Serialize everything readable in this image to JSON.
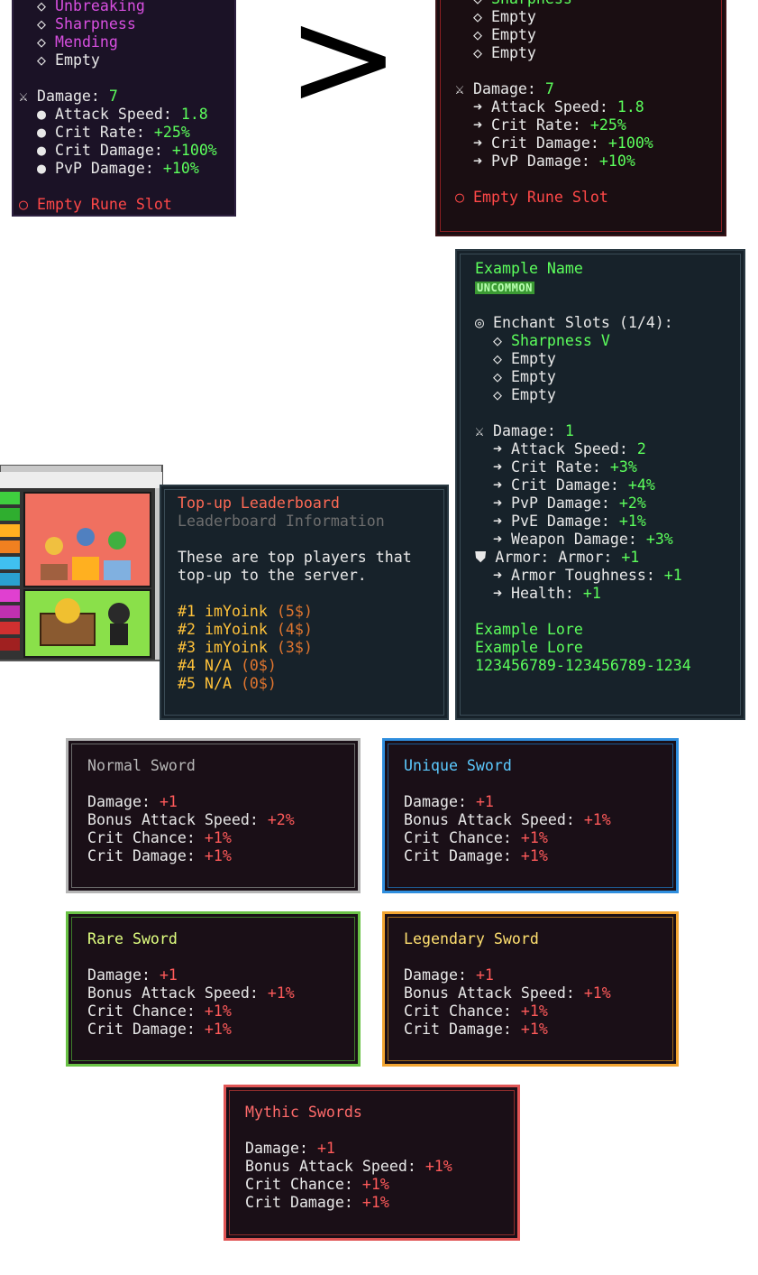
{
  "separator": ">",
  "panels": [
    {
      "lines": [
        [
          {
            "text": "  ◇ ",
            "color": "#e8e8e8"
          },
          {
            "text": "Unbreaking",
            "color": "#d84fe0"
          }
        ],
        [
          {
            "text": "  ◇ ",
            "color": "#e8e8e8"
          },
          {
            "text": "Sharpness",
            "color": "#d84fe0"
          }
        ],
        [
          {
            "text": "  ◇ ",
            "color": "#e8e8e8"
          },
          {
            "text": "Mending",
            "color": "#d84fe0"
          }
        ],
        [
          {
            "text": "  ◇ Empty",
            "color": "#e8e8e8"
          }
        ],
        [],
        [
          {
            "text": "⚔ Damage: ",
            "color": "#e8e8e8"
          },
          {
            "text": "7",
            "color": "#5cff5c"
          }
        ],
        [
          {
            "text": "  ● Attack Speed: ",
            "color": "#e8e8e8"
          },
          {
            "text": "1.8",
            "color": "#5cff5c"
          }
        ],
        [
          {
            "text": "  ● Crit Rate: ",
            "color": "#e8e8e8"
          },
          {
            "text": "+25%",
            "color": "#5cff5c"
          }
        ],
        [
          {
            "text": "  ● Crit Damage: ",
            "color": "#e8e8e8"
          },
          {
            "text": "+100%",
            "color": "#5cff5c"
          }
        ],
        [
          {
            "text": "  ● PvP Damage: ",
            "color": "#e8e8e8"
          },
          {
            "text": "+10%",
            "color": "#5cff5c"
          }
        ],
        [],
        [
          {
            "text": "○ Empty Rune Slot",
            "color": "#ff4848"
          }
        ]
      ]
    },
    {
      "lines": [
        [
          {
            "text": "  ◇ ",
            "color": "#e8e8e8"
          },
          {
            "text": "Sharpness",
            "color": "#5cff5c"
          }
        ],
        [
          {
            "text": "  ◇ Empty",
            "color": "#e8e8e8"
          }
        ],
        [
          {
            "text": "  ◇ Empty",
            "color": "#e8e8e8"
          }
        ],
        [
          {
            "text": "  ◇ Empty",
            "color": "#e8e8e8"
          }
        ],
        [],
        [
          {
            "text": "⚔ Damage: ",
            "color": "#e8e8e8"
          },
          {
            "text": "7",
            "color": "#5cff5c"
          }
        ],
        [
          {
            "text": "  ➜ Attack Speed: ",
            "color": "#e8e8e8"
          },
          {
            "text": "1.8",
            "color": "#5cff5c"
          }
        ],
        [
          {
            "text": "  ➜ Crit Rate: ",
            "color": "#e8e8e8"
          },
          {
            "text": "+25%",
            "color": "#5cff5c"
          }
        ],
        [
          {
            "text": "  ➜ Crit Damage: ",
            "color": "#e8e8e8"
          },
          {
            "text": "+100%",
            "color": "#5cff5c"
          }
        ],
        [
          {
            "text": "  ➜ PvP Damage: ",
            "color": "#e8e8e8"
          },
          {
            "text": "+10%",
            "color": "#5cff5c"
          }
        ],
        [],
        [
          {
            "text": "○ Empty Rune Slot",
            "color": "#ff4848"
          }
        ]
      ]
    },
    {
      "lines": [
        [
          {
            "text": "Example Name",
            "color": "#5cff5c"
          }
        ],
        [
          {
            "text": "UNCOMMON",
            "color": "#b8ffb0",
            "background": "#3b9a33"
          }
        ],
        [],
        [
          {
            "text": "◎ Enchant Slots (1/4):",
            "color": "#e8e8e8"
          }
        ],
        [
          {
            "text": "  ◇ ",
            "color": "#e8e8e8"
          },
          {
            "text": "Sharpness V",
            "color": "#5cff5c"
          }
        ],
        [
          {
            "text": "  ◇ Empty",
            "color": "#e8e8e8"
          }
        ],
        [
          {
            "text": "  ◇ Empty",
            "color": "#e8e8e8"
          }
        ],
        [
          {
            "text": "  ◇ Empty",
            "color": "#e8e8e8"
          }
        ],
        [],
        [
          {
            "text": "⚔ Damage: ",
            "color": "#e8e8e8"
          },
          {
            "text": "1",
            "color": "#5cff5c"
          }
        ],
        [
          {
            "text": "  ➜ Attack Speed: ",
            "color": "#e8e8e8"
          },
          {
            "text": "2",
            "color": "#5cff5c"
          }
        ],
        [
          {
            "text": "  ➜ Crit Rate: ",
            "color": "#e8e8e8"
          },
          {
            "text": "+3%",
            "color": "#5cff5c"
          }
        ],
        [
          {
            "text": "  ➜ Crit Damage: ",
            "color": "#e8e8e8"
          },
          {
            "text": "+4%",
            "color": "#5cff5c"
          }
        ],
        [
          {
            "text": "  ➜ PvP Damage: ",
            "color": "#e8e8e8"
          },
          {
            "text": "+2%",
            "color": "#5cff5c"
          }
        ],
        [
          {
            "text": "  ➜ PvE Damage: ",
            "color": "#e8e8e8"
          },
          {
            "text": "+1%",
            "color": "#5cff5c"
          }
        ],
        [
          {
            "text": "  ➜ Weapon Damage: ",
            "color": "#e8e8e8"
          },
          {
            "text": "+3%",
            "color": "#5cff5c"
          }
        ],
        [
          {
            "text": "⛊ Armor: Armor: ",
            "color": "#e8e8e8"
          },
          {
            "text": "+1",
            "color": "#5cff5c"
          }
        ],
        [
          {
            "text": "  ➜ Armor Toughness: ",
            "color": "#e8e8e8"
          },
          {
            "text": "+1",
            "color": "#5cff5c"
          }
        ],
        [
          {
            "text": "  ➜ Health: ",
            "color": "#e8e8e8"
          },
          {
            "text": "+1",
            "color": "#5cff5c"
          }
        ],
        [],
        [
          {
            "text": "Example Lore",
            "color": "#5cff5c"
          }
        ],
        [
          {
            "text": "Example Lore",
            "color": "#5cff5c"
          }
        ],
        [
          {
            "text": "123456789-123456789-1234",
            "color": "#5cff5c"
          }
        ]
      ]
    },
    {
      "lines": [
        [
          {
            "text": "Top-up Leaderboard",
            "color": "#ff6a55"
          }
        ],
        [
          {
            "text": "Leaderboard Information",
            "color": "#6e6e6e"
          }
        ],
        [],
        [
          {
            "text": "These are top players that",
            "color": "#e8e8e8"
          }
        ],
        [
          {
            "text": "top-up to the server.",
            "color": "#e8e8e8"
          }
        ],
        [],
        [
          {
            "text": "#1 imYoink ",
            "color": "#ffc23a"
          },
          {
            "text": "(5$)",
            "color": "#e0752e"
          }
        ],
        [
          {
            "text": "#2 imYoink ",
            "color": "#ffc23a"
          },
          {
            "text": "(4$)",
            "color": "#e0752e"
          }
        ],
        [
          {
            "text": "#3 imYoink ",
            "color": "#ffc23a"
          },
          {
            "text": "(3$)",
            "color": "#e0752e"
          }
        ],
        [
          {
            "text": "#4 N/A ",
            "color": "#ffc23a"
          },
          {
            "text": "(0$)",
            "color": "#e0752e"
          }
        ],
        [
          {
            "text": "#5 N/A ",
            "color": "#ffc23a"
          },
          {
            "text": "(0$)",
            "color": "#e0752e"
          }
        ]
      ]
    },
    {
      "lines": [
        [
          {
            "text": "Normal Sword",
            "color": "#b8b8b8"
          }
        ],
        [],
        [
          {
            "text": "Damage: ",
            "color": "#e8e8e8"
          },
          {
            "text": "+1",
            "color": "#ff5a5a"
          }
        ],
        [
          {
            "text": "Bonus Attack Speed: ",
            "color": "#e8e8e8"
          },
          {
            "text": "+2%",
            "color": "#ff5a5a"
          }
        ],
        [
          {
            "text": "Crit Chance: ",
            "color": "#e8e8e8"
          },
          {
            "text": "+1%",
            "color": "#ff5a5a"
          }
        ],
        [
          {
            "text": "Crit Damage: ",
            "color": "#e8e8e8"
          },
          {
            "text": "+1%",
            "color": "#ff5a5a"
          }
        ]
      ]
    },
    {
      "lines": [
        [
          {
            "text": "Unique Sword",
            "color": "#5ccaff"
          }
        ],
        [],
        [
          {
            "text": "Damage: ",
            "color": "#e8e8e8"
          },
          {
            "text": "+1",
            "color": "#ff5a5a"
          }
        ],
        [
          {
            "text": "Bonus Attack Speed: ",
            "color": "#e8e8e8"
          },
          {
            "text": "+1%",
            "color": "#ff5a5a"
          }
        ],
        [
          {
            "text": "Crit Chance: ",
            "color": "#e8e8e8"
          },
          {
            "text": "+1%",
            "color": "#ff5a5a"
          }
        ],
        [
          {
            "text": "Crit Damage: ",
            "color": "#e8e8e8"
          },
          {
            "text": "+1%",
            "color": "#ff5a5a"
          }
        ]
      ]
    },
    {
      "lines": [
        [
          {
            "text": "Rare Sword",
            "color": "#e0ff80"
          }
        ],
        [],
        [
          {
            "text": "Damage: ",
            "color": "#e8e8e8"
          },
          {
            "text": "+1",
            "color": "#ff5a5a"
          }
        ],
        [
          {
            "text": "Bonus Attack Speed: ",
            "color": "#e8e8e8"
          },
          {
            "text": "+1%",
            "color": "#ff5a5a"
          }
        ],
        [
          {
            "text": "Crit Chance: ",
            "color": "#e8e8e8"
          },
          {
            "text": "+1%",
            "color": "#ff5a5a"
          }
        ],
        [
          {
            "text": "Crit Damage: ",
            "color": "#e8e8e8"
          },
          {
            "text": "+1%",
            "color": "#ff5a5a"
          }
        ]
      ]
    },
    {
      "lines": [
        [
          {
            "text": "Legendary Sword",
            "color": "#ffe070"
          }
        ],
        [],
        [
          {
            "text": "Damage: ",
            "color": "#e8e8e8"
          },
          {
            "text": "+1",
            "color": "#ff5a5a"
          }
        ],
        [
          {
            "text": "Bonus Attack Speed: ",
            "color": "#e8e8e8"
          },
          {
            "text": "+1%",
            "color": "#ff5a5a"
          }
        ],
        [
          {
            "text": "Crit Chance: ",
            "color": "#e8e8e8"
          },
          {
            "text": "+1%",
            "color": "#ff5a5a"
          }
        ],
        [
          {
            "text": "Crit Damage: ",
            "color": "#e8e8e8"
          },
          {
            "text": "+1%",
            "color": "#ff5a5a"
          }
        ]
      ]
    },
    {
      "lines": [
        [
          {
            "text": "Mythic Swords",
            "color": "#ff6a6a"
          }
        ],
        [],
        [
          {
            "text": "Damage: ",
            "color": "#e8e8e8"
          },
          {
            "text": "+1",
            "color": "#ff5a5a"
          }
        ],
        [
          {
            "text": "Bonus Attack Speed: ",
            "color": "#e8e8e8"
          },
          {
            "text": "+1%",
            "color": "#ff5a5a"
          }
        ],
        [
          {
            "text": "Crit Chance: ",
            "color": "#e8e8e8"
          },
          {
            "text": "+1%",
            "color": "#ff5a5a"
          }
        ],
        [
          {
            "text": "Crit Damage: ",
            "color": "#e8e8e8"
          },
          {
            "text": "+1%",
            "color": "#ff5a5a"
          }
        ]
      ]
    }
  ]
}
